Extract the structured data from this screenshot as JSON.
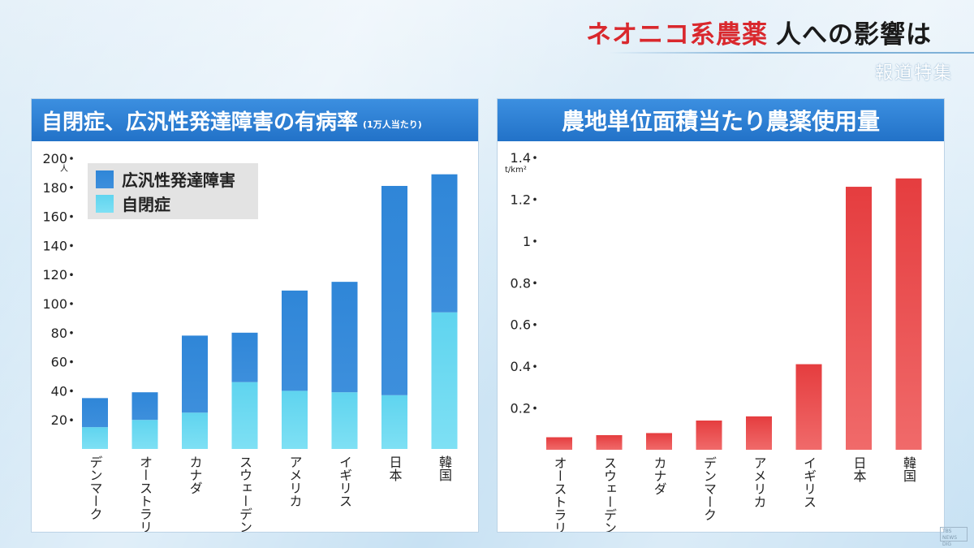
{
  "headline": {
    "part1": "ネオニコ系農薬",
    "part2": "人への影響は"
  },
  "corner_label": "報道特集",
  "watermark": "TBS NEWS DIG",
  "colors": {
    "dev_disorder": "#2f86d8",
    "autism": "#5fd4ef",
    "pesticide": "#e84848",
    "panel_title": "#2272c8",
    "headline_red": "#d9282d"
  },
  "chart_data": [
    {
      "type": "bar",
      "stacked": true,
      "title": "自閉症、広汎性発達障害の有病率",
      "subtitle": "(1万人当たり)",
      "ylabel": "人",
      "ylim": [
        0,
        200
      ],
      "yticks": [
        "20",
        "40",
        "60",
        "80",
        "100",
        "120",
        "140",
        "160",
        "180",
        "200"
      ],
      "categories": [
        "デンマーク",
        "オーストラリア",
        "カナダ",
        "スウェーデン",
        "アメリカ",
        "イギリス",
        "日本",
        "韓国"
      ],
      "series": [
        {
          "name": "自閉症",
          "values": [
            15,
            20,
            25,
            46,
            40,
            39,
            37,
            94
          ]
        },
        {
          "name": "広汎性発達障害",
          "values": [
            20,
            19,
            53,
            34,
            69,
            76,
            144,
            95
          ]
        }
      ],
      "legend": [
        "広汎性発達障害",
        "自閉症"
      ],
      "legend_position": "top-left",
      "grid": false
    },
    {
      "type": "bar",
      "title": "農地単位面積当たり農薬使用量",
      "ylabel": "t/km²",
      "ylim": [
        0,
        1.4
      ],
      "yticks": [
        "0.2",
        "0.4",
        "0.6",
        "0.8",
        "1",
        "1.2",
        "1.4"
      ],
      "categories": [
        "オーストラリア",
        "スウェーデン",
        "カナダ",
        "デンマーク",
        "アメリカ",
        "イギリス",
        "日本",
        "韓国"
      ],
      "values": [
        0.06,
        0.07,
        0.08,
        0.14,
        0.16,
        0.41,
        1.26,
        1.3
      ],
      "grid": false
    }
  ]
}
